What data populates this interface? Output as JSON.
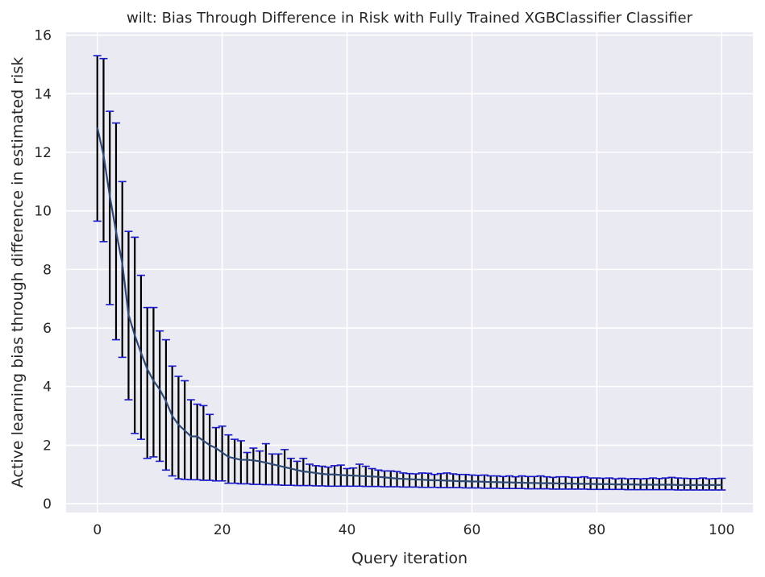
{
  "chart_data": {
    "type": "line",
    "title": "wilt: Bias Through Difference in Risk with Fully Trained XGBClassifier Classifier",
    "xlabel": "Query iteration",
    "ylabel": "Active learning bias through difference in estimated risk",
    "xlim": [
      -5,
      105
    ],
    "ylim": [
      -0.3,
      16.1
    ],
    "xticks": [
      0,
      20,
      40,
      60,
      80,
      100
    ],
    "yticks": [
      0,
      2,
      4,
      6,
      8,
      10,
      12,
      14,
      16
    ],
    "grid": true,
    "legend": "none",
    "series": [
      {
        "x": [
          0,
          1,
          2,
          3,
          4,
          5,
          6,
          7,
          8,
          9,
          10,
          11,
          12,
          13,
          14,
          15,
          16,
          17,
          18,
          19,
          20,
          21,
          22,
          23,
          24,
          25,
          26,
          27,
          28,
          29,
          30,
          31,
          32,
          33,
          34,
          35,
          36,
          37,
          38,
          39,
          40,
          41,
          42,
          43,
          44,
          45,
          46,
          47,
          48,
          49,
          50,
          51,
          52,
          53,
          54,
          55,
          56,
          57,
          58,
          59,
          60,
          61,
          62,
          63,
          64,
          65,
          66,
          67,
          68,
          69,
          70,
          71,
          72,
          73,
          74,
          75,
          76,
          77,
          78,
          79,
          80,
          81,
          82,
          83,
          84,
          85,
          86,
          87,
          88,
          89,
          90,
          91,
          92,
          93,
          94,
          95,
          96,
          97,
          98,
          99,
          100
        ],
        "mean": [
          12.85,
          11.9,
          10.5,
          9.3,
          8.2,
          6.45,
          5.75,
          5.15,
          4.6,
          4.2,
          3.9,
          3.5,
          3.0,
          2.7,
          2.5,
          2.3,
          2.3,
          2.15,
          2.0,
          1.9,
          1.75,
          1.6,
          1.55,
          1.5,
          1.5,
          1.48,
          1.45,
          1.4,
          1.35,
          1.3,
          1.25,
          1.2,
          1.15,
          1.1,
          1.08,
          1.05,
          1.02,
          1.0,
          1.0,
          0.98,
          0.97,
          0.96,
          0.95,
          0.94,
          0.93,
          0.92,
          0.9,
          0.88,
          0.86,
          0.85,
          0.84,
          0.83,
          0.82,
          0.81,
          0.8,
          0.8,
          0.79,
          0.78,
          0.77,
          0.77,
          0.76,
          0.76,
          0.75,
          0.74,
          0.74,
          0.73,
          0.73,
          0.72,
          0.72,
          0.71,
          0.71,
          0.7,
          0.7,
          0.7,
          0.69,
          0.69,
          0.69,
          0.68,
          0.68,
          0.68,
          0.67,
          0.67,
          0.67,
          0.66,
          0.66,
          0.66,
          0.66,
          0.65,
          0.65,
          0.65,
          0.65,
          0.65,
          0.65,
          0.64,
          0.64,
          0.64,
          0.64,
          0.64,
          0.64,
          0.64,
          0.64
        ],
        "upper": [
          15.3,
          15.2,
          13.4,
          13.0,
          11.0,
          9.3,
          9.1,
          7.8,
          6.7,
          6.7,
          5.9,
          5.6,
          4.7,
          4.35,
          4.2,
          3.55,
          3.4,
          3.35,
          3.05,
          2.6,
          2.65,
          2.35,
          2.2,
          2.15,
          1.75,
          1.9,
          1.8,
          2.05,
          1.7,
          1.7,
          1.85,
          1.55,
          1.45,
          1.55,
          1.35,
          1.3,
          1.28,
          1.25,
          1.3,
          1.32,
          1.2,
          1.22,
          1.35,
          1.28,
          1.2,
          1.15,
          1.12,
          1.12,
          1.1,
          1.05,
          1.03,
          1.02,
          1.05,
          1.04,
          1.0,
          1.03,
          1.05,
          1.02,
          1.0,
          1.0,
          0.98,
          0.97,
          0.98,
          0.95,
          0.95,
          0.93,
          0.95,
          0.92,
          0.95,
          0.93,
          0.93,
          0.95,
          0.92,
          0.9,
          0.92,
          0.92,
          0.9,
          0.9,
          0.92,
          0.88,
          0.88,
          0.87,
          0.88,
          0.85,
          0.87,
          0.85,
          0.86,
          0.85,
          0.86,
          0.88,
          0.86,
          0.88,
          0.9,
          0.88,
          0.87,
          0.86,
          0.86,
          0.88,
          0.85,
          0.86,
          0.87
        ],
        "lower": [
          9.65,
          8.95,
          6.8,
          5.6,
          5.0,
          3.55,
          2.4,
          2.2,
          1.55,
          1.6,
          1.45,
          1.15,
          0.95,
          0.85,
          0.83,
          0.82,
          0.82,
          0.8,
          0.8,
          0.78,
          0.78,
          0.7,
          0.7,
          0.68,
          0.68,
          0.66,
          0.66,
          0.65,
          0.65,
          0.64,
          0.63,
          0.63,
          0.62,
          0.62,
          0.62,
          0.61,
          0.61,
          0.6,
          0.6,
          0.6,
          0.6,
          0.6,
          0.6,
          0.59,
          0.59,
          0.59,
          0.58,
          0.58,
          0.58,
          0.57,
          0.57,
          0.57,
          0.56,
          0.56,
          0.56,
          0.55,
          0.55,
          0.55,
          0.55,
          0.54,
          0.54,
          0.54,
          0.53,
          0.53,
          0.53,
          0.52,
          0.52,
          0.52,
          0.52,
          0.51,
          0.51,
          0.51,
          0.51,
          0.5,
          0.5,
          0.5,
          0.5,
          0.5,
          0.5,
          0.49,
          0.49,
          0.49,
          0.49,
          0.49,
          0.49,
          0.48,
          0.48,
          0.48,
          0.48,
          0.48,
          0.48,
          0.48,
          0.48,
          0.47,
          0.47,
          0.47,
          0.47,
          0.47,
          0.47,
          0.47,
          0.47
        ]
      }
    ],
    "colors": {
      "plot_bg": "#EAEAF2",
      "grid": "#FFFFFF",
      "mean_line": "#2E4A75",
      "error_bar": "#000000",
      "cap": "#1A1ACC",
      "text": "#262626"
    }
  }
}
